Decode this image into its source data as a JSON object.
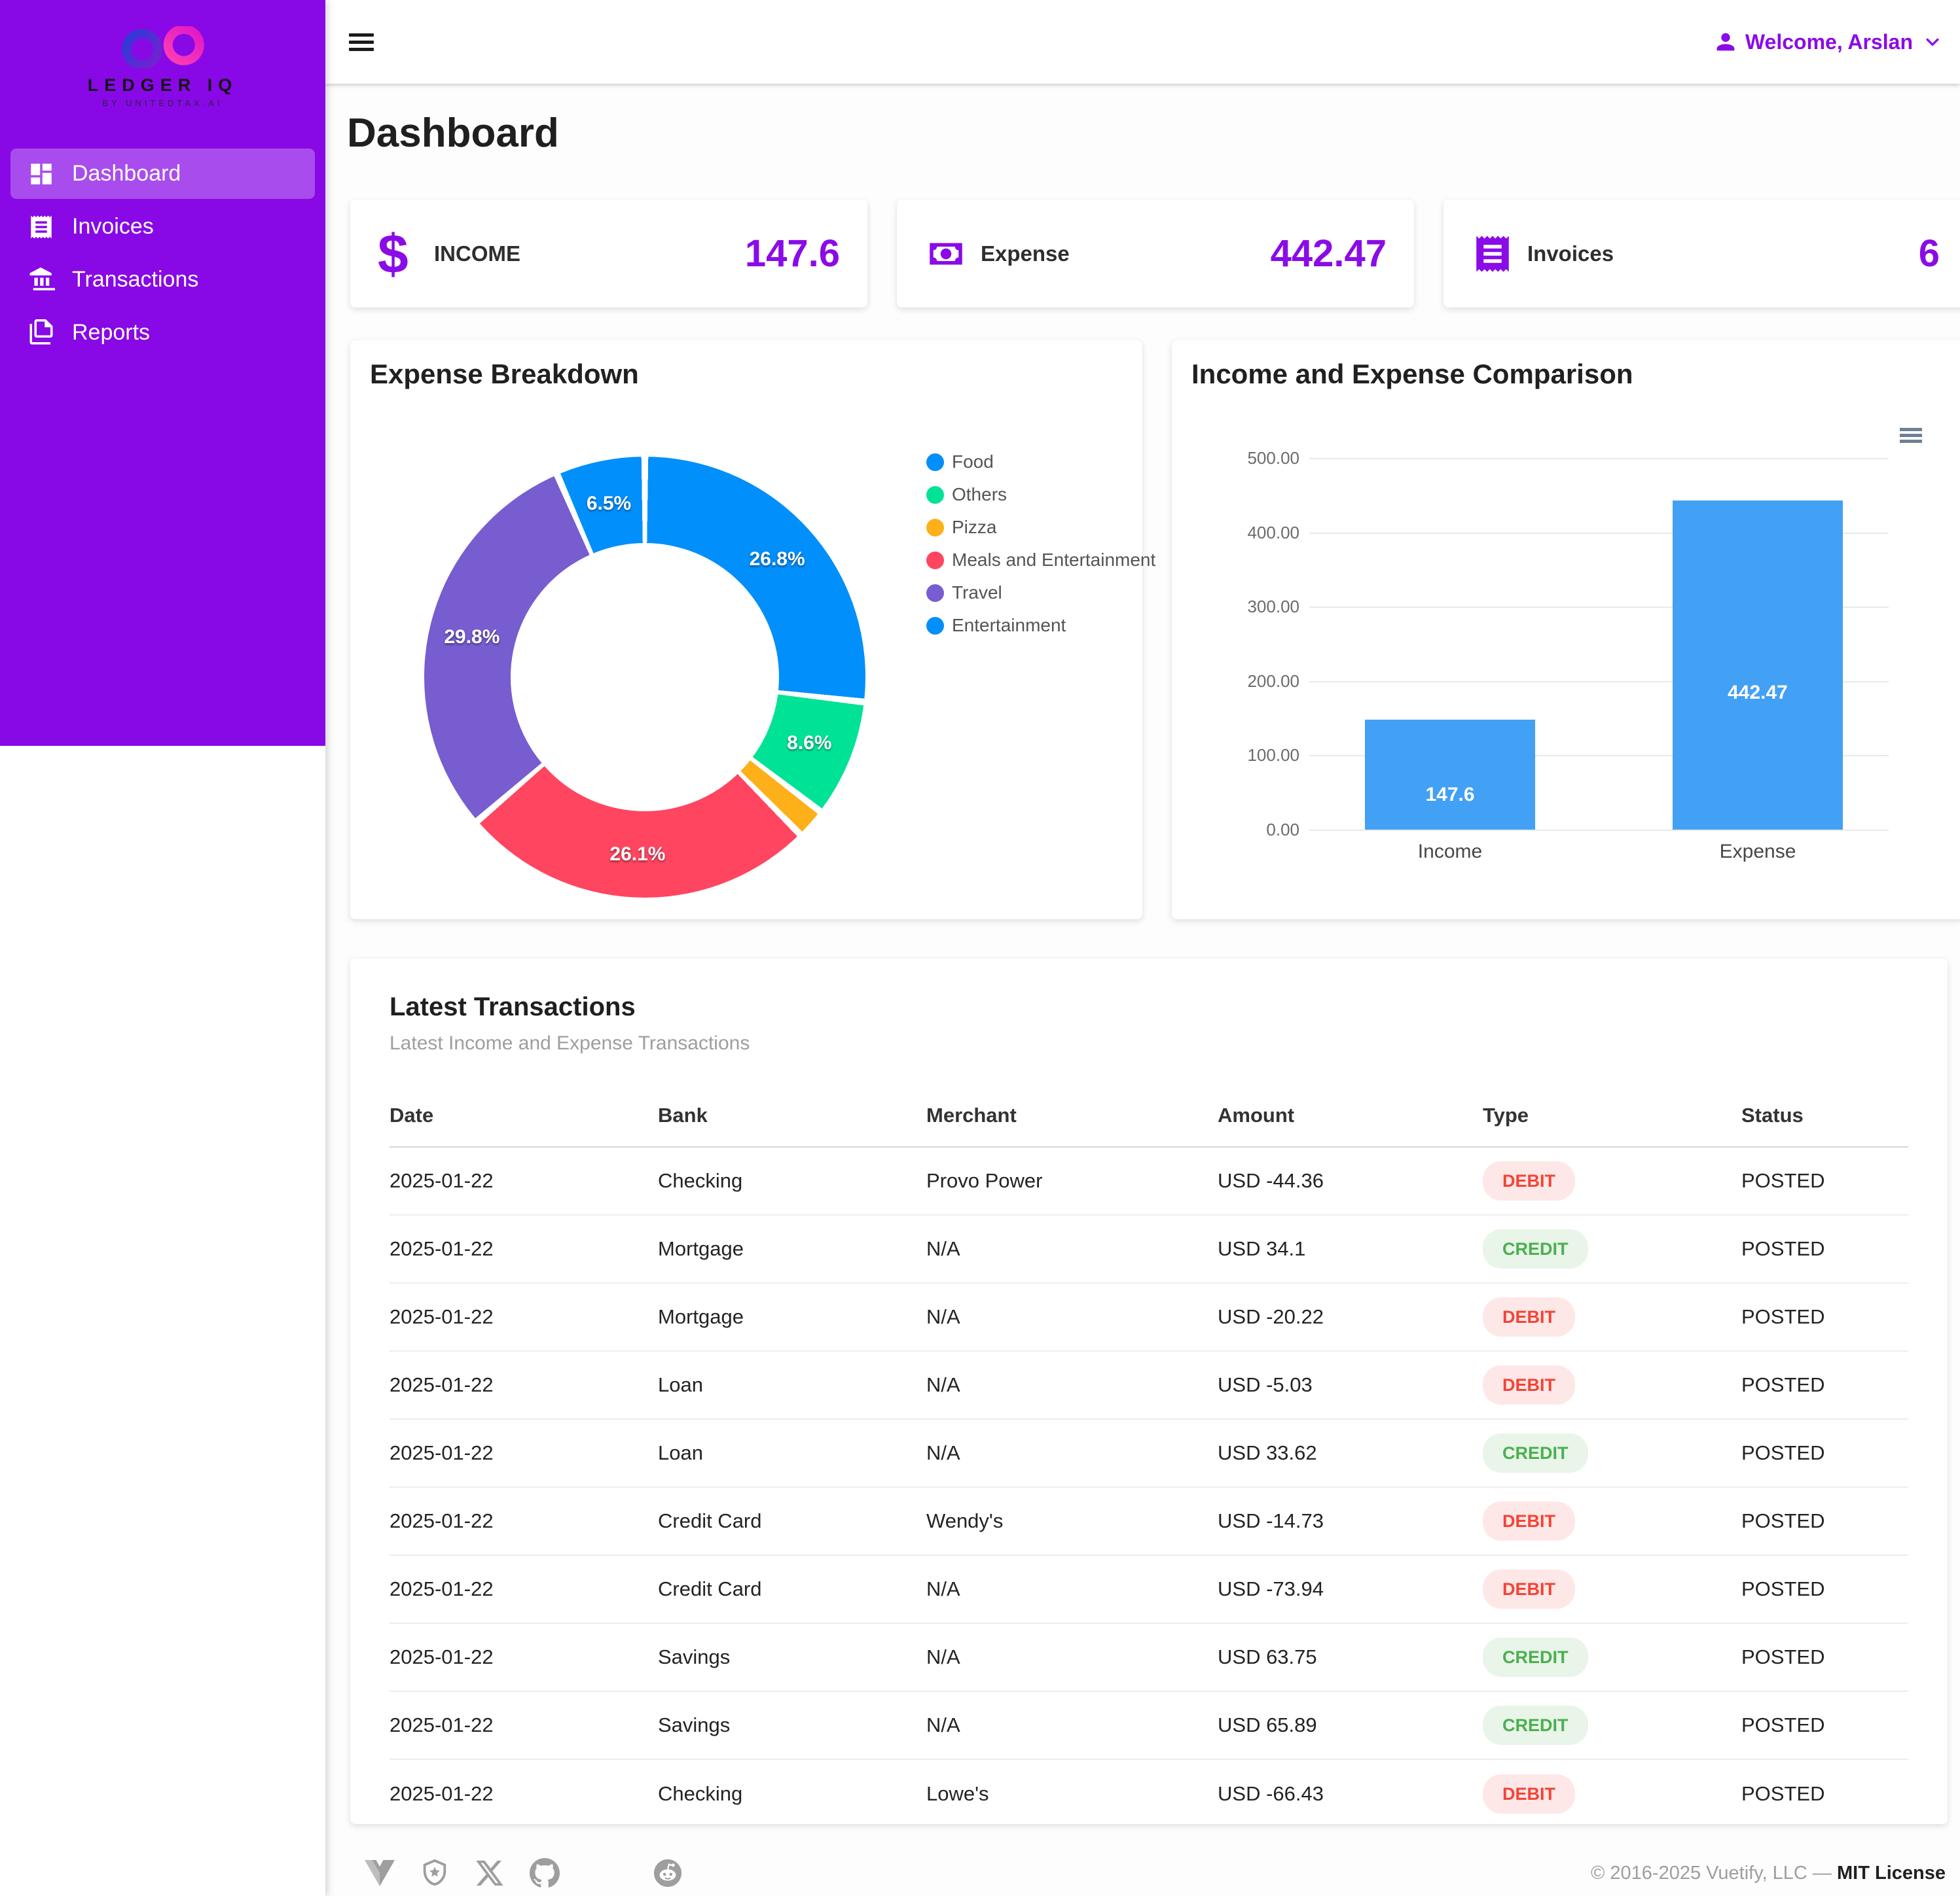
{
  "app": {
    "logo_title": "LEDGER IQ",
    "logo_subtitle": "BY UNITEDTAX.AI"
  },
  "page": {
    "title": "Dashboard"
  },
  "appbar": {
    "user_greeting": "Welcome, Arslan"
  },
  "sidebar": {
    "items": [
      {
        "label": "Dashboard",
        "icon": "view-dashboard-icon",
        "active": true
      },
      {
        "label": "Invoices",
        "icon": "receipt-icon",
        "active": false
      },
      {
        "label": "Transactions",
        "icon": "bank-icon",
        "active": false
      },
      {
        "label": "Reports",
        "icon": "file-document-icon",
        "active": false
      }
    ]
  },
  "stats": [
    {
      "label": "INCOME",
      "value": "147.6",
      "icon": "currency-usd-icon",
      "icon_char": "$"
    },
    {
      "label": "Expense",
      "value": "442.47",
      "icon": "cash-icon"
    },
    {
      "label": "Invoices",
      "value": "6",
      "icon": "receipt-icon"
    }
  ],
  "colors": {
    "sidebar": "#8808E6",
    "accent": "#8A0BE8",
    "bar": "#42A0F5",
    "debit": "#F44336",
    "credit": "#4CAF50"
  },
  "chart_data": [
    {
      "type": "pie",
      "subtype": "donut",
      "title": "Expense Breakdown",
      "labels": [
        "Food",
        "Others",
        "Pizza",
        "Meals and Entertainment",
        "Travel",
        "Entertainment"
      ],
      "values": [
        26.8,
        8.6,
        2.2,
        26.1,
        29.8,
        6.5
      ],
      "unit": "percent",
      "colors": [
        "#008FFB",
        "#00E396",
        "#FEB019",
        "#FF4560",
        "#775DD0",
        "#008FFB"
      ],
      "data_labels": [
        "26.8%",
        "8.6%",
        "",
        "26.1%",
        "29.8%",
        "6.5%"
      ],
      "legend_position": "right"
    },
    {
      "type": "bar",
      "title": "Income and Expense Comparison",
      "categories": [
        "Income",
        "Expense"
      ],
      "values": [
        147.6,
        442.47
      ],
      "data_labels": [
        "147.6",
        "442.47"
      ],
      "ylim": [
        0,
        500
      ],
      "yticks": [
        "500.00",
        "400.00",
        "300.00",
        "200.00",
        "100.00",
        "0.00"
      ],
      "grid": true,
      "legend_position": "none"
    }
  ],
  "transactions": {
    "title": "Latest Transactions",
    "subtitle": "Latest Income and Expense Transactions",
    "columns": [
      "Date",
      "Bank",
      "Merchant",
      "Amount",
      "Type",
      "Status"
    ],
    "rows": [
      {
        "date": "2025-01-22",
        "bank": "Checking",
        "merchant": "Provo Power",
        "amount": "USD -44.36",
        "type": "DEBIT",
        "status": "POSTED"
      },
      {
        "date": "2025-01-22",
        "bank": "Mortgage",
        "merchant": "N/A",
        "amount": "USD 34.1",
        "type": "CREDIT",
        "status": "POSTED"
      },
      {
        "date": "2025-01-22",
        "bank": "Mortgage",
        "merchant": "N/A",
        "amount": "USD -20.22",
        "type": "DEBIT",
        "status": "POSTED"
      },
      {
        "date": "2025-01-22",
        "bank": "Loan",
        "merchant": "N/A",
        "amount": "USD -5.03",
        "type": "DEBIT",
        "status": "POSTED"
      },
      {
        "date": "2025-01-22",
        "bank": "Loan",
        "merchant": "N/A",
        "amount": "USD 33.62",
        "type": "CREDIT",
        "status": "POSTED"
      },
      {
        "date": "2025-01-22",
        "bank": "Credit Card",
        "merchant": "Wendy's",
        "amount": "USD -14.73",
        "type": "DEBIT",
        "status": "POSTED"
      },
      {
        "date": "2025-01-22",
        "bank": "Credit Card",
        "merchant": "N/A",
        "amount": "USD -73.94",
        "type": "DEBIT",
        "status": "POSTED"
      },
      {
        "date": "2025-01-22",
        "bank": "Savings",
        "merchant": "N/A",
        "amount": "USD 63.75",
        "type": "CREDIT",
        "status": "POSTED"
      },
      {
        "date": "2025-01-22",
        "bank": "Savings",
        "merchant": "N/A",
        "amount": "USD 65.89",
        "type": "CREDIT",
        "status": "POSTED"
      },
      {
        "date": "2025-01-22",
        "bank": "Checking",
        "merchant": "Lowe's",
        "amount": "USD -66.43",
        "type": "DEBIT",
        "status": "POSTED"
      }
    ]
  },
  "footer": {
    "copyright": "© 2016-2025 Vuetify, LLC —",
    "license": "MIT License",
    "icons": [
      "vuetify-logo-icon",
      "shield-star-icon",
      "x-icon",
      "github-icon",
      "reddit-icon"
    ]
  }
}
